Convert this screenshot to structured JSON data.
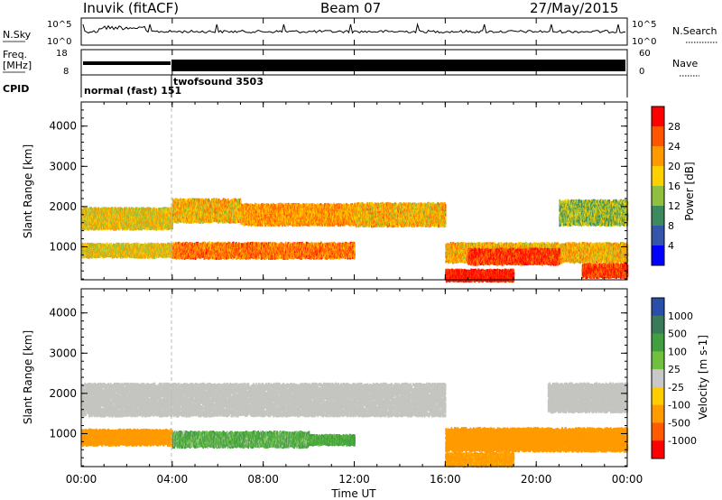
{
  "header": {
    "station": "Inuvik (fitACF)",
    "beam": "Beam 07",
    "date": "27/May/2015"
  },
  "status_panels": {
    "nsky_label": "N.Sky",
    "nsearch_label": "N.Search",
    "nsky_ticks": [
      "10^5",
      "10^0"
    ],
    "nsearch_ticks": [
      "10^5",
      "10^0"
    ],
    "freq_label": "Freq.",
    "freq_unit": "[MHz]",
    "freq_ticks": [
      "18",
      "8"
    ],
    "nave_label": "Nave",
    "nave_ticks": [
      "60",
      "0"
    ],
    "cpid_label": "CPID",
    "cpid_entries": [
      "normal (fast) 151",
      "twofsound 3503"
    ]
  },
  "colors": {
    "power_scale": [
      "#0000ff",
      "#3355aa",
      "#3d8a5e",
      "#90c040",
      "#ffd000",
      "#ff9900",
      "#ff5500",
      "#ff0000"
    ],
    "velocity_scale": [
      "#2a4fa8",
      "#3a7a5a",
      "#40a040",
      "#70c040",
      "#c8c8c8",
      "#ffcc00",
      "#ff9a00",
      "#ff5a00",
      "#ff0000"
    ],
    "ground_scatter": "#c4c4c0"
  },
  "chart_data": [
    {
      "type": "heatmap",
      "panel": "power",
      "ylabel": "Slant Range [km]",
      "xlabel": "",
      "x_ticks": [
        "00:00",
        "04:00",
        "08:00",
        "12:00",
        "16:00",
        "20:00",
        "00:00"
      ],
      "y_ticks": [
        "1000",
        "2000",
        "3000",
        "4000"
      ],
      "ylim": [
        180,
        4600
      ],
      "xlim_hours": [
        0,
        24
      ],
      "colorbar_label": "Power [dB]",
      "colorbar_ticks": [
        "4",
        "8",
        "12",
        "16",
        "20",
        "24",
        "28"
      ],
      "bands": [
        {
          "t0": 0.0,
          "t1": 4.0,
          "range_center": 1750,
          "range_width": 500,
          "level": 18
        },
        {
          "t0": 4.0,
          "t1": 7.0,
          "range_center": 1950,
          "range_width": 550,
          "level": 20
        },
        {
          "t0": 7.0,
          "t1": 12.0,
          "range_center": 1850,
          "range_width": 500,
          "level": 22
        },
        {
          "t0": 12.0,
          "t1": 16.0,
          "range_center": 1850,
          "range_width": 550,
          "level": 20
        },
        {
          "t0": 0.0,
          "t1": 4.0,
          "range_center": 950,
          "range_width": 300,
          "level": 18
        },
        {
          "t0": 4.0,
          "t1": 12.0,
          "range_center": 950,
          "range_width": 350,
          "level": 24
        },
        {
          "t0": 16.0,
          "t1": 24.0,
          "range_center": 900,
          "range_width": 450,
          "level": 20
        },
        {
          "t0": 17.0,
          "t1": 21.0,
          "range_center": 800,
          "range_width": 350,
          "level": 28
        },
        {
          "t0": 16.0,
          "t1": 19.0,
          "range_center": 320,
          "range_width": 260,
          "level": 30
        },
        {
          "t0": 21.0,
          "t1": 24.0,
          "range_center": 1900,
          "range_width": 600,
          "level": 14
        },
        {
          "t0": 22.0,
          "t1": 24.0,
          "range_center": 450,
          "range_width": 300,
          "level": 28
        }
      ]
    },
    {
      "type": "heatmap",
      "panel": "velocity",
      "ylabel": "Slant Range [km]",
      "xlabel": "Time UT",
      "x_ticks": [
        "00:00",
        "04:00",
        "08:00",
        "12:00",
        "16:00",
        "20:00",
        "00:00"
      ],
      "y_ticks": [
        "1000",
        "2000",
        "3000",
        "4000"
      ],
      "ylim": [
        180,
        4600
      ],
      "xlim_hours": [
        0,
        24
      ],
      "colorbar_label": "Velocity [m s-1]",
      "colorbar_ticks": [
        "1000",
        "500",
        "100",
        "25",
        "-25",
        "-100",
        "-500",
        "-1000"
      ],
      "bands": [
        {
          "t0": 0.0,
          "t1": 16.0,
          "range_center": 1900,
          "range_width": 800,
          "kind": "ground"
        },
        {
          "t0": 20.5,
          "t1": 24.0,
          "range_center": 1950,
          "range_width": 700,
          "kind": "ground"
        },
        {
          "t0": 0.0,
          "t1": 4.0,
          "range_center": 950,
          "range_width": 350,
          "value": -300
        },
        {
          "t0": 4.0,
          "t1": 10.0,
          "range_center": 900,
          "range_width": 350,
          "value": 120
        },
        {
          "t0": 10.0,
          "t1": 12.0,
          "range_center": 880,
          "range_width": 200,
          "value": 150
        },
        {
          "t0": 16.0,
          "t1": 24.0,
          "range_center": 900,
          "range_width": 550,
          "value": -250
        },
        {
          "t0": 16.0,
          "t1": 19.0,
          "range_center": 400,
          "range_width": 300,
          "value": -200
        }
      ]
    }
  ]
}
